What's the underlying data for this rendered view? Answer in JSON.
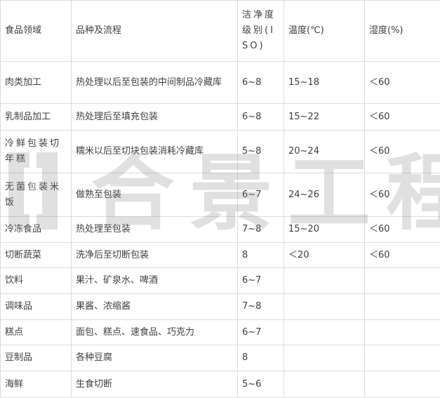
{
  "table": {
    "headers": [
      "食品领域",
      "品种及流程",
      "洁净度级别(ISO)",
      "温度(℃)",
      "湿度(%)"
    ],
    "rows": [
      [
        "肉类加工",
        "热处理以后至包装的中间制品冷藏库",
        "6~8",
        "15~18",
        "＜60"
      ],
      [
        "乳制品加工",
        "热处理后至填充包装",
        "6~8",
        "15~22",
        "＜60"
      ],
      [
        "冷鲜包装切年糕",
        "糯米以后至切块包装消耗冷藏库",
        "5~8",
        "20~24",
        "＜60"
      ],
      [
        "无菌包装米饭",
        "做熟至包装",
        "6~7",
        "24~26",
        "＜60"
      ],
      [
        "冷冻食品",
        "热处理至包装",
        "7~8",
        "15~20",
        "＜60"
      ],
      [
        "切断蔬菜",
        "洗净后至切断包装",
        "8",
        "＜20",
        "＜60"
      ],
      [
        "饮料",
        "果汁、矿泉水、啤酒",
        "6~7",
        "",
        ""
      ],
      [
        "调味品",
        "果酱、浓缩酱",
        "7~8",
        "",
        ""
      ],
      [
        "糕点",
        "面包、糕点、速食品、巧克力",
        "6~7",
        "",
        ""
      ],
      [
        "豆制品",
        "各种豆腐",
        "8",
        "",
        ""
      ],
      [
        "海鲜",
        "生食切断",
        "5~6",
        "",
        ""
      ]
    ]
  },
  "watermark": {
    "text": "合景工程",
    "color": "#777777"
  }
}
